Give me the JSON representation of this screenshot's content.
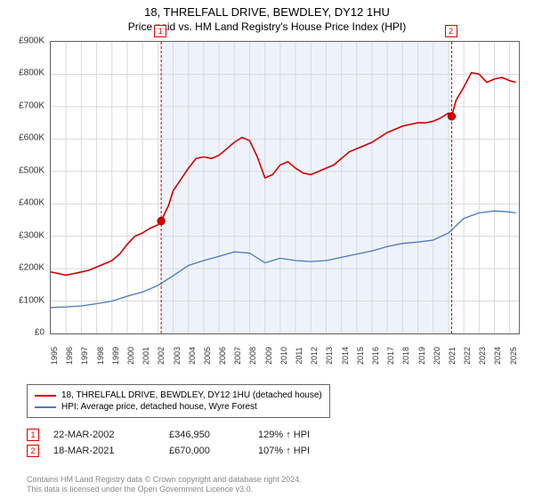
{
  "title_line1": "18, THRELFALL DRIVE, BEWDLEY, DY12 1HU",
  "title_line2": "Price paid vs. HM Land Registry's House Price Index (HPI)",
  "chart": {
    "type": "line",
    "background_color": "#ffffff",
    "grid_color": "#d9d9d9",
    "axis_color": "#666666",
    "shaded_band": {
      "xstart": 2002.22,
      "xend": 2021.21,
      "fill": "#eef3fb"
    },
    "event_lines": [
      {
        "x": 2002.22,
        "color": "#d00000",
        "dash": "3,2",
        "label": "1"
      },
      {
        "x": 2021.21,
        "color": "#d00000",
        "dash": "3,2",
        "label": "2"
      }
    ],
    "xlim": [
      1995,
      2025.6
    ],
    "xtick_years": [
      1995,
      1996,
      1997,
      1998,
      1999,
      2000,
      2001,
      2002,
      2003,
      2004,
      2005,
      2006,
      2007,
      2008,
      2009,
      2010,
      2011,
      2012,
      2013,
      2014,
      2015,
      2016,
      2017,
      2018,
      2019,
      2020,
      2021,
      2022,
      2023,
      2024,
      2025
    ],
    "ylim": [
      0,
      900
    ],
    "ytick_step": 100,
    "ytick_labels": [
      "£0",
      "£100K",
      "£200K",
      "£300K",
      "£400K",
      "£500K",
      "£600K",
      "£700K",
      "£800K",
      "£900K"
    ],
    "label_fontsize": 10,
    "series": [
      {
        "name": "18, THRELFALL DRIVE, BEWDLEY, DY12 1HU (detached house)",
        "color": "#d00000",
        "width": 1.6,
        "points": [
          [
            1995,
            190
          ],
          [
            1995.5,
            185
          ],
          [
            1996,
            180
          ],
          [
            1996.5,
            185
          ],
          [
            1997,
            190
          ],
          [
            1997.5,
            195
          ],
          [
            1998,
            205
          ],
          [
            1998.5,
            215
          ],
          [
            1999,
            225
          ],
          [
            1999.5,
            245
          ],
          [
            2000,
            275
          ],
          [
            2000.5,
            300
          ],
          [
            2001,
            310
          ],
          [
            2001.5,
            325
          ],
          [
            2002,
            335
          ],
          [
            2002.22,
            347
          ],
          [
            2002.7,
            395
          ],
          [
            2003,
            440
          ],
          [
            2003.5,
            475
          ],
          [
            2004,
            510
          ],
          [
            2004.5,
            540
          ],
          [
            2005,
            545
          ],
          [
            2005.5,
            540
          ],
          [
            2006,
            550
          ],
          [
            2006.5,
            570
          ],
          [
            2007,
            590
          ],
          [
            2007.5,
            605
          ],
          [
            2008,
            595
          ],
          [
            2008.5,
            545
          ],
          [
            2009,
            480
          ],
          [
            2009.5,
            490
          ],
          [
            2010,
            520
          ],
          [
            2010.5,
            530
          ],
          [
            2011,
            510
          ],
          [
            2011.5,
            495
          ],
          [
            2012,
            490
          ],
          [
            2012.5,
            500
          ],
          [
            2013,
            510
          ],
          [
            2013.5,
            520
          ],
          [
            2014,
            540
          ],
          [
            2014.5,
            560
          ],
          [
            2015,
            570
          ],
          [
            2015.5,
            580
          ],
          [
            2016,
            590
          ],
          [
            2016.5,
            605
          ],
          [
            2017,
            620
          ],
          [
            2017.5,
            630
          ],
          [
            2018,
            640
          ],
          [
            2018.5,
            645
          ],
          [
            2019,
            650
          ],
          [
            2019.5,
            650
          ],
          [
            2020,
            655
          ],
          [
            2020.5,
            665
          ],
          [
            2021,
            680
          ],
          [
            2021.21,
            670
          ],
          [
            2021.5,
            720
          ],
          [
            2022,
            760
          ],
          [
            2022.5,
            805
          ],
          [
            2023,
            800
          ],
          [
            2023.5,
            775
          ],
          [
            2024,
            785
          ],
          [
            2024.5,
            790
          ],
          [
            2025,
            780
          ],
          [
            2025.4,
            775
          ]
        ]
      },
      {
        "name": "HPI: Average price, detached house, Wyre Forest",
        "color": "#4a78c4",
        "width": 1.3,
        "points": [
          [
            1995,
            80
          ],
          [
            1996,
            82
          ],
          [
            1997,
            85
          ],
          [
            1998,
            92
          ],
          [
            1999,
            100
          ],
          [
            2000,
            115
          ],
          [
            2001,
            128
          ],
          [
            2002,
            148
          ],
          [
            2003,
            178
          ],
          [
            2004,
            210
          ],
          [
            2005,
            225
          ],
          [
            2006,
            238
          ],
          [
            2007,
            252
          ],
          [
            2008,
            248
          ],
          [
            2009,
            218
          ],
          [
            2010,
            232
          ],
          [
            2011,
            225
          ],
          [
            2012,
            222
          ],
          [
            2013,
            225
          ],
          [
            2014,
            235
          ],
          [
            2015,
            245
          ],
          [
            2016,
            255
          ],
          [
            2017,
            268
          ],
          [
            2018,
            278
          ],
          [
            2019,
            282
          ],
          [
            2020,
            288
          ],
          [
            2021,
            310
          ],
          [
            2022,
            355
          ],
          [
            2023,
            372
          ],
          [
            2024,
            378
          ],
          [
            2025,
            375
          ],
          [
            2025.4,
            372
          ]
        ]
      }
    ],
    "sale_markers": [
      {
        "x": 2002.22,
        "y": 347,
        "color": "#d00000"
      },
      {
        "x": 2021.21,
        "y": 670,
        "color": "#d00000"
      }
    ]
  },
  "legend": {
    "border_color": "#666666",
    "items": [
      {
        "color": "#d00000",
        "label": "18, THRELFALL DRIVE, BEWDLEY, DY12 1HU (detached house)"
      },
      {
        "color": "#4a78c4",
        "label": "HPI: Average price, detached house, Wyre Forest"
      }
    ]
  },
  "sales": [
    {
      "marker": "1",
      "date": "22-MAR-2002",
      "price": "£346,950",
      "hpi": "129% ↑ HPI"
    },
    {
      "marker": "2",
      "date": "18-MAR-2021",
      "price": "£670,000",
      "hpi": "107% ↑ HPI"
    }
  ],
  "footer_lines": [
    "Contains HM Land Registry data © Crown copyright and database right 2024.",
    "This data is licensed under the Open Government Licence v3.0."
  ]
}
